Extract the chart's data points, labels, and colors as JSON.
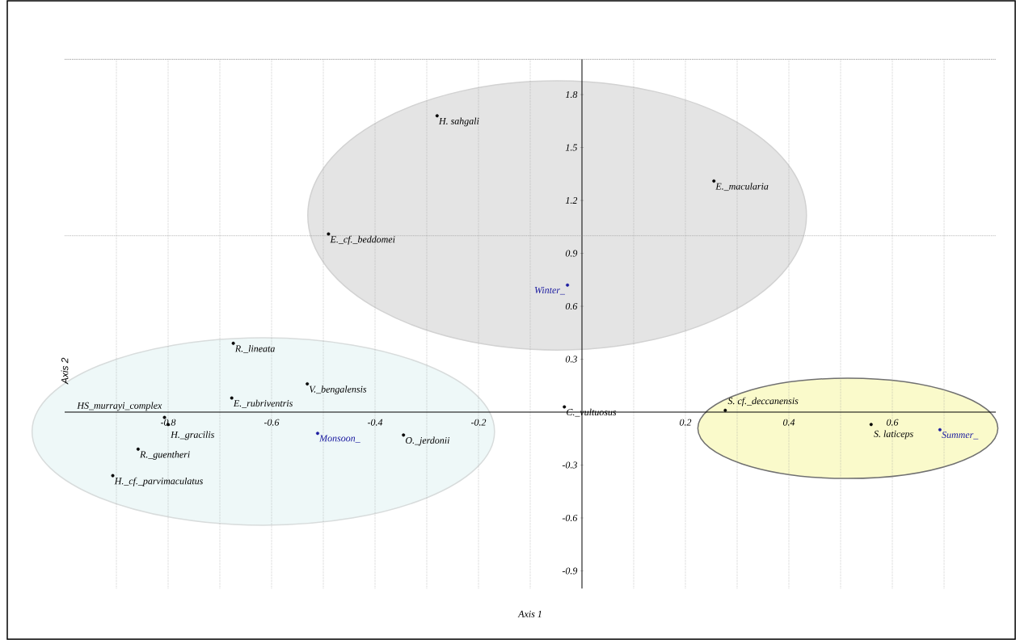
{
  "chart_data": {
    "type": "scatter",
    "xlabel": "Axis 1",
    "ylabel": "Axis 2",
    "xlim": [
      -1.0,
      0.8
    ],
    "ylim": [
      -1.0,
      2.0
    ],
    "xticks": [
      {
        "value": -0.9,
        "label": null
      },
      -0.8,
      {
        "value": -0.7,
        "label": null
      },
      -0.6,
      {
        "value": -0.5,
        "label": null
      },
      -0.4,
      {
        "value": -0.3,
        "label": null
      },
      -0.2,
      {
        "value": -0.1,
        "label": null
      },
      {
        "value": 0.1,
        "label": null
      },
      0.2,
      {
        "value": 0.3,
        "label": null
      },
      0.4,
      {
        "value": 0.5,
        "label": null
      },
      0.6,
      {
        "value": 0.7,
        "label": null
      }
    ],
    "yticks": [
      -0.9,
      -0.6,
      -0.3,
      0.3,
      0.6,
      0.9,
      1.2,
      1.5,
      1.8
    ],
    "grid": "x",
    "ref_lines": [
      {
        "axis": "y",
        "value": 1.0,
        "line_style": "dotted",
        "color": "#999999"
      },
      {
        "axis": "y",
        "value": 2.0,
        "line_style": "dotted",
        "color": "#666666"
      }
    ],
    "series": [
      {
        "name": "H. sahgali",
        "color": "#000000",
        "x": [
          -0.28
        ],
        "values": [
          1.68
        ]
      },
      {
        "name": "E._macularia",
        "color": "#000000",
        "x": [
          0.255
        ],
        "values": [
          1.31
        ]
      },
      {
        "name": "E._cf._beddomei",
        "color": "#000000",
        "x": [
          -0.49
        ],
        "values": [
          1.01
        ]
      },
      {
        "name": "Winter_",
        "color": "#1c1ca0",
        "x": [
          -0.028
        ],
        "values": [
          0.72
        ]
      },
      {
        "name": "R._lineata",
        "color": "#000000",
        "x": [
          -0.674
        ],
        "values": [
          0.39
        ]
      },
      {
        "name": "V._bengalensis",
        "color": "#000000",
        "x": [
          -0.531
        ],
        "values": [
          0.16
        ]
      },
      {
        "name": "E._rubriventris",
        "color": "#000000",
        "x": [
          -0.677
        ],
        "values": [
          0.08
        ]
      },
      {
        "name": "HS_murrayi_complex",
        "color": "#000000",
        "x": [
          -0.807
        ],
        "values": [
          -0.03
        ]
      },
      {
        "name": "H._gracilis",
        "color": "#000000",
        "x": [
          -0.8
        ],
        "values": [
          -0.07
        ]
      },
      {
        "name": "R._guentheri",
        "color": "#000000",
        "x": [
          -0.858
        ],
        "values": [
          -0.21
        ]
      },
      {
        "name": "H._cf._parvimaculatus",
        "color": "#000000",
        "x": [
          -0.907
        ],
        "values": [
          -0.36
        ]
      },
      {
        "name": "Monsoon_",
        "color": "#1c1ca0",
        "x": [
          -0.511
        ],
        "values": [
          -0.12
        ]
      },
      {
        "name": "O._jerdonii",
        "color": "#000000",
        "x": [
          -0.345
        ],
        "values": [
          -0.13
        ]
      },
      {
        "name": "C._vultuosus",
        "color": "#000000",
        "x": [
          -0.034
        ],
        "values": [
          0.03
        ]
      },
      {
        "name": "S. cf._deccanensis",
        "color": "#000000",
        "x": [
          0.277
        ],
        "values": [
          0.01
        ]
      },
      {
        "name": "S. laticeps",
        "color": "#000000",
        "x": [
          0.559
        ],
        "values": [
          -0.07
        ]
      },
      {
        "name": "Summer_",
        "color": "#1c1ca0",
        "x": [
          0.692
        ],
        "values": [
          -0.1
        ]
      }
    ]
  }
}
